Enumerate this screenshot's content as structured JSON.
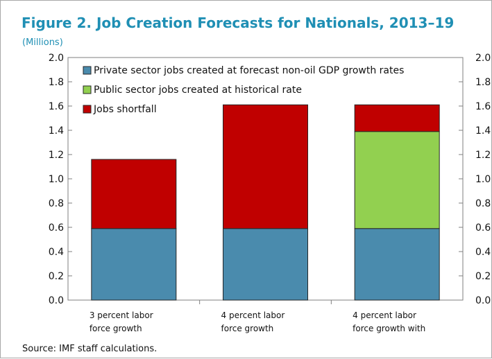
{
  "figure": {
    "title": "Figure 2. Job Creation Forecasts for Nationals, 2013–19",
    "units": "(Millions)",
    "source": "Source: IMF staff calculations."
  },
  "chart_data": {
    "type": "bar",
    "stacked": true,
    "title": "Figure 2. Job Creation Forecasts for Nationals, 2013–19",
    "ylabel": "(Millions)",
    "ylim": [
      0,
      2.0
    ],
    "yticks": [
      0.0,
      0.2,
      0.4,
      0.6,
      0.8,
      1.0,
      1.2,
      1.4,
      1.6,
      1.8,
      2.0
    ],
    "ytick_labels": [
      "0.0",
      "0.2",
      "0.4",
      "0.6",
      "0.8",
      "1.0",
      "1.2",
      "1.4",
      "1.6",
      "1.8",
      "2.0"
    ],
    "secondary_axis": true,
    "grid": false,
    "legend_position": "top-left",
    "categories": [
      [
        "3 percent labor",
        "force growth"
      ],
      [
        "4 percent labor",
        "force growth"
      ],
      [
        "4 percent labor",
        "force growth with"
      ]
    ],
    "series": [
      {
        "name": "Private sector jobs created at forecast non-oil GDP growth rates",
        "color": "#4a8bad",
        "values": [
          0.59,
          0.59,
          0.59
        ]
      },
      {
        "name": "Public sector jobs created at historical rate",
        "color": "#92d050",
        "values": [
          0,
          0,
          0.8
        ]
      },
      {
        "name": "Jobs shortfall",
        "color": "#c00000",
        "values": [
          0.57,
          1.02,
          0.22
        ]
      }
    ]
  }
}
